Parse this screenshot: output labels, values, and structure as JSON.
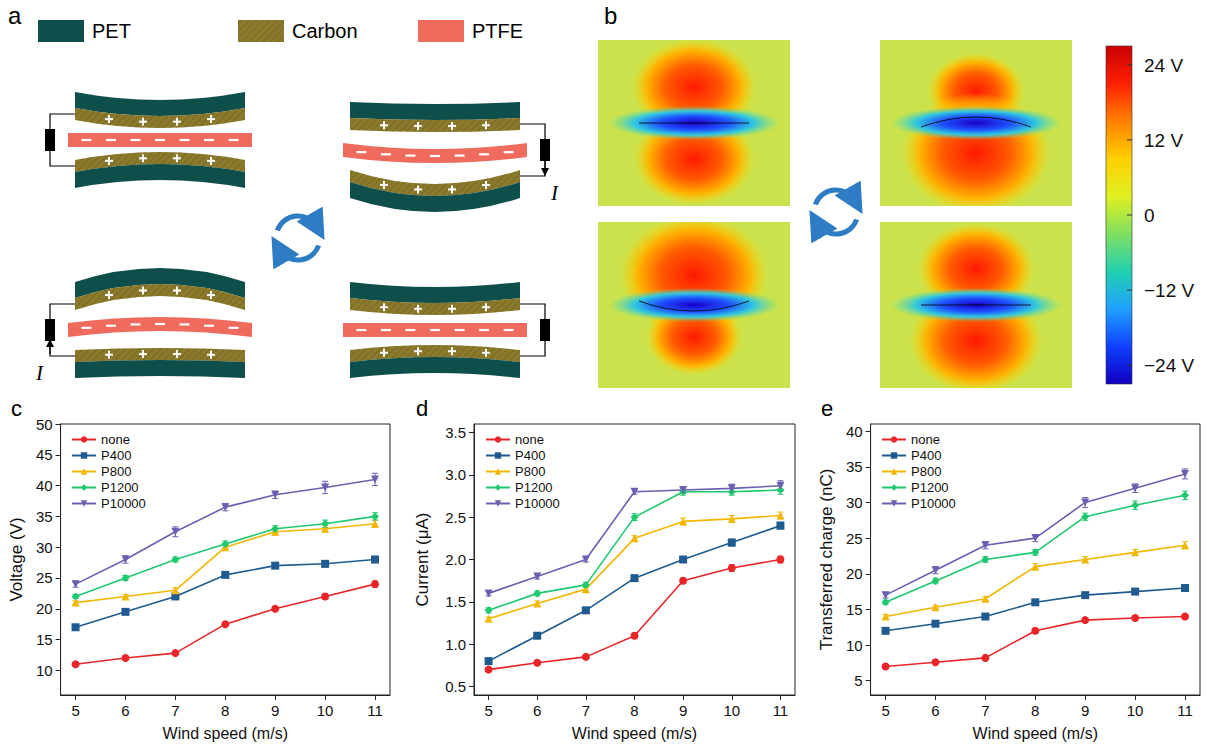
{
  "chart_data": [
    {
      "panel": "c",
      "type": "line",
      "x_label": "Wind speed (m/s)",
      "y_label": "Voltage (V)",
      "x": [
        5,
        6,
        7,
        8,
        9,
        10,
        11
      ],
      "xlim": [
        4.7,
        11.3
      ],
      "xticks": [
        5,
        6,
        7,
        8,
        9,
        10,
        11
      ],
      "ylim": [
        6,
        50
      ],
      "yticks": [
        10,
        15,
        20,
        25,
        30,
        35,
        40,
        45,
        50
      ],
      "grid": false,
      "legend": "upper left",
      "series": [
        {
          "name": "none",
          "color": "#e8262a",
          "marker": "circle",
          "values": [
            11,
            12,
            12.8,
            17.5,
            20,
            22,
            24
          ],
          "errors": [
            0.3,
            0.3,
            0.3,
            0.3,
            0.3,
            0.4,
            0.5
          ]
        },
        {
          "name": "P400",
          "color": "#1f5b8e",
          "marker": "square",
          "values": [
            17,
            19.5,
            22,
            25.5,
            27,
            27.3,
            28
          ],
          "errors": [
            0.3,
            0.3,
            0.4,
            0.4,
            0.4,
            0.5,
            0.5
          ]
        },
        {
          "name": "P800",
          "color": "#f2b705",
          "marker": "triangle",
          "values": [
            21,
            22,
            23,
            30,
            32.5,
            33,
            33.8
          ],
          "errors": [
            0.3,
            0.3,
            0.4,
            0.4,
            0.5,
            0.5,
            0.6
          ]
        },
        {
          "name": "P1200",
          "color": "#1ec86e",
          "marker": "diamond",
          "values": [
            22,
            25,
            28,
            30.5,
            33,
            33.8,
            35
          ],
          "errors": [
            0.3,
            0.4,
            0.4,
            0.5,
            0.5,
            0.6,
            0.6
          ]
        },
        {
          "name": "P10000",
          "color": "#6c5fb2",
          "marker": "triangle-down",
          "values": [
            24,
            28,
            32.5,
            36.5,
            38.5,
            39.7,
            41
          ],
          "errors": [
            0.5,
            0.6,
            0.8,
            0.6,
            0.6,
            1.0,
            1.0
          ]
        }
      ]
    },
    {
      "panel": "d",
      "type": "line",
      "x_label": "Wind speed (m/s)",
      "y_label": "Current (μA)",
      "x": [
        5,
        6,
        7,
        8,
        9,
        10,
        11
      ],
      "xlim": [
        4.7,
        11.3
      ],
      "xticks": [
        5,
        6,
        7,
        8,
        9,
        10,
        11
      ],
      "ylim": [
        0.4,
        3.6
      ],
      "yticks": [
        0.5,
        {
          "value": 1,
          "label": "1.0"
        },
        1.5,
        {
          "value": 2,
          "label": "2.0"
        },
        2.5,
        {
          "value": 3,
          "label": "3.0"
        },
        3.5
      ],
      "grid": false,
      "legend": "upper left",
      "series": [
        {
          "name": "none",
          "color": "#e8262a",
          "marker": "circle",
          "values": [
            0.7,
            0.78,
            0.85,
            1.1,
            1.75,
            1.9,
            2.0
          ],
          "errors": [
            0.02,
            0.02,
            0.02,
            0.03,
            0.03,
            0.04,
            0.04
          ]
        },
        {
          "name": "P400",
          "color": "#1f5b8e",
          "marker": "square",
          "values": [
            0.8,
            1.1,
            1.4,
            1.78,
            2.0,
            2.2,
            2.4
          ],
          "errors": [
            0.02,
            0.02,
            0.03,
            0.03,
            0.03,
            0.04,
            0.04
          ]
        },
        {
          "name": "P800",
          "color": "#f2b705",
          "marker": "triangle",
          "values": [
            1.3,
            1.48,
            1.65,
            2.25,
            2.45,
            2.48,
            2.52
          ],
          "errors": [
            0.02,
            0.03,
            0.03,
            0.03,
            0.04,
            0.04,
            0.04
          ]
        },
        {
          "name": "P1200",
          "color": "#1ec86e",
          "marker": "diamond",
          "values": [
            1.4,
            1.6,
            1.7,
            2.5,
            2.8,
            2.8,
            2.82
          ],
          "errors": [
            0.03,
            0.03,
            0.03,
            0.04,
            0.04,
            0.04,
            0.05
          ]
        },
        {
          "name": "P10000",
          "color": "#6c5fb2",
          "marker": "triangle-down",
          "values": [
            1.6,
            1.8,
            2.0,
            2.8,
            2.82,
            2.84,
            2.87
          ],
          "errors": [
            0.03,
            0.03,
            0.03,
            0.03,
            0.04,
            0.05,
            0.06
          ]
        }
      ]
    },
    {
      "panel": "e",
      "type": "line",
      "x_label": "Wind speed (m/s)",
      "y_label": "Transferred charge (nC)",
      "x": [
        5,
        6,
        7,
        8,
        9,
        10,
        11
      ],
      "xlim": [
        4.7,
        11.3
      ],
      "xticks": [
        5,
        6,
        7,
        8,
        9,
        10,
        11
      ],
      "ylim": [
        3,
        41
      ],
      "yticks": [
        5,
        10,
        15,
        20,
        25,
        30,
        35,
        40
      ],
      "grid": false,
      "legend": "upper left",
      "series": [
        {
          "name": "none",
          "color": "#e8262a",
          "marker": "circle",
          "values": [
            7,
            7.6,
            8.2,
            12,
            13.5,
            13.8,
            14
          ],
          "errors": [
            0.2,
            0.2,
            0.2,
            0.3,
            0.3,
            0.3,
            0.3
          ]
        },
        {
          "name": "P400",
          "color": "#1f5b8e",
          "marker": "square",
          "values": [
            12,
            13,
            14,
            16,
            17,
            17.5,
            18
          ],
          "errors": [
            0.2,
            0.2,
            0.3,
            0.3,
            0.3,
            0.3,
            0.4
          ]
        },
        {
          "name": "P800",
          "color": "#f2b705",
          "marker": "triangle",
          "values": [
            14,
            15.3,
            16.5,
            21,
            22,
            23,
            24
          ],
          "errors": [
            0.3,
            0.3,
            0.3,
            0.4,
            0.4,
            0.4,
            0.5
          ]
        },
        {
          "name": "P1200",
          "color": "#1ec86e",
          "marker": "diamond",
          "values": [
            16,
            19,
            22,
            23,
            28,
            29.6,
            31
          ],
          "errors": [
            0.3,
            0.4,
            0.4,
            0.4,
            0.5,
            0.6,
            0.6
          ]
        },
        {
          "name": "P10000",
          "color": "#6c5fb2",
          "marker": "triangle-down",
          "values": [
            17,
            20.5,
            24,
            25,
            30,
            32,
            34
          ],
          "errors": [
            0.4,
            0.5,
            0.5,
            0.5,
            0.7,
            0.6,
            0.7
          ]
        }
      ]
    }
  ],
  "diagram": {
    "panel": "a",
    "materials": [
      {
        "label": "PET",
        "color": "#0f4f4b"
      },
      {
        "label": "Carbon",
        "color": "#8c7a2c"
      },
      {
        "label": "PTFE",
        "color": "#ee6b5d"
      }
    ],
    "current_label": "I"
  },
  "field_map": {
    "panel": "b",
    "colorbar": {
      "range": [
        -27,
        27
      ],
      "ticks": [
        {
          "value": 24,
          "label": "24 V"
        },
        {
          "value": 12,
          "label": "12 V"
        },
        0,
        {
          "value": -12,
          "label": "−12 V"
        },
        {
          "value": -24,
          "label": "−24 V"
        }
      ]
    }
  }
}
